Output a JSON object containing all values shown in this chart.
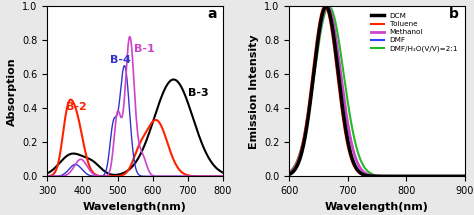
{
  "panel_a": {
    "xlabel": "Wavelength(nm)",
    "ylabel": "Absorption",
    "xlim": [
      300,
      800
    ],
    "ylim": [
      0.0,
      1.0
    ],
    "label": "a",
    "curves": {
      "B-1": {
        "color": "#cc44cc",
        "lw": 1.2
      },
      "B-2": {
        "color": "#ff2200",
        "lw": 1.5
      },
      "B-3": {
        "color": "#000000",
        "lw": 1.5
      },
      "B-4": {
        "color": "#3333cc",
        "lw": 1.0
      }
    }
  },
  "panel_b": {
    "xlabel": "Wavelength(nm)",
    "ylabel": "Emission Intensity",
    "xlim": [
      600,
      900
    ],
    "ylim": [
      0.0,
      1.0
    ],
    "label": "b",
    "curves": [
      {
        "name": "DCM",
        "color": "#000000",
        "peak": 663,
        "sigma": 21,
        "lw": 2.5
      },
      {
        "name": "Toluene",
        "color": "#ff2200",
        "peak": 661,
        "sigma": 21,
        "lw": 1.5
      },
      {
        "name": "Methanol",
        "color": "#cc44cc",
        "peak": 665,
        "sigma": 23,
        "lw": 2.0
      },
      {
        "name": "DMF",
        "color": "#3344ff",
        "peak": 663,
        "sigma": 21,
        "lw": 1.5
      },
      {
        "name": "DMF/H₂O(V/V)=2:1",
        "color": "#22bb22",
        "peak": 668,
        "sigma": 25,
        "lw": 1.5
      }
    ]
  },
  "bg_color": "#e8e8e8",
  "tick_fontsize": 7,
  "label_fontsize": 8,
  "annot_fontsize": 9
}
